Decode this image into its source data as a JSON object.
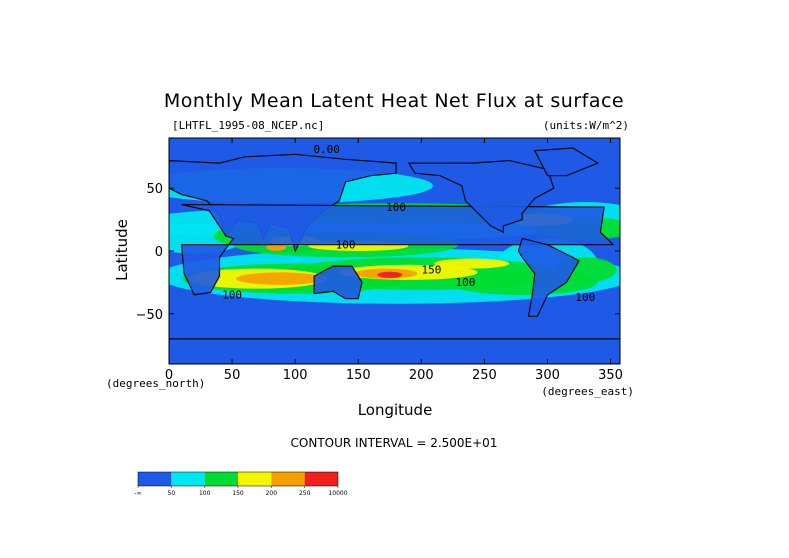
{
  "chart_data": {
    "type": "heatmap",
    "title": "Monthly Mean Latent Heat Net Flux at surface",
    "dataset_label": "[LHTFL_1995-08_NCEP.nc]",
    "units_label": "(units:W/m^2)",
    "xlabel": "Longitude",
    "ylabel": "Latitude",
    "x_units": "(degrees_east)",
    "y_units": "(degrees_north)",
    "xlim": [
      0,
      357.5
    ],
    "ylim": [
      -90,
      90
    ],
    "x_ticks": [
      0,
      50,
      100,
      150,
      200,
      250,
      300,
      350
    ],
    "x_tick_labels": [
      "0",
      "50",
      "100",
      "150",
      "200",
      "250",
      "300",
      "350"
    ],
    "y_ticks": [
      50,
      0,
      -50
    ],
    "y_tick_labels": [
      "50",
      "0",
      "−50"
    ],
    "contour_interval": "CONTOUR INTERVAL = 2.500E+01",
    "colorbar": {
      "colors": [
        "#1e5ae6",
        "#00e6f0",
        "#00dc32",
        "#f5f500",
        "#f5a000",
        "#f01e1e"
      ],
      "tick_labels": [
        "-∞",
        "50",
        "100",
        "150",
        "200",
        "250",
        "10000"
      ]
    },
    "contour_labels": [
      {
        "text": "0.00",
        "lon": 125,
        "lat": 78
      },
      {
        "text": "100",
        "lon": 180,
        "lat": 32
      },
      {
        "text": "100",
        "lon": 140,
        "lat": 2
      },
      {
        "text": "100",
        "lon": 50,
        "lat": -38
      },
      {
        "text": "150",
        "lon": 208,
        "lat": -18
      },
      {
        "text": "100",
        "lon": 235,
        "lat": -28
      },
      {
        "text": "100",
        "lon": 330,
        "lat": -40
      }
    ]
  }
}
